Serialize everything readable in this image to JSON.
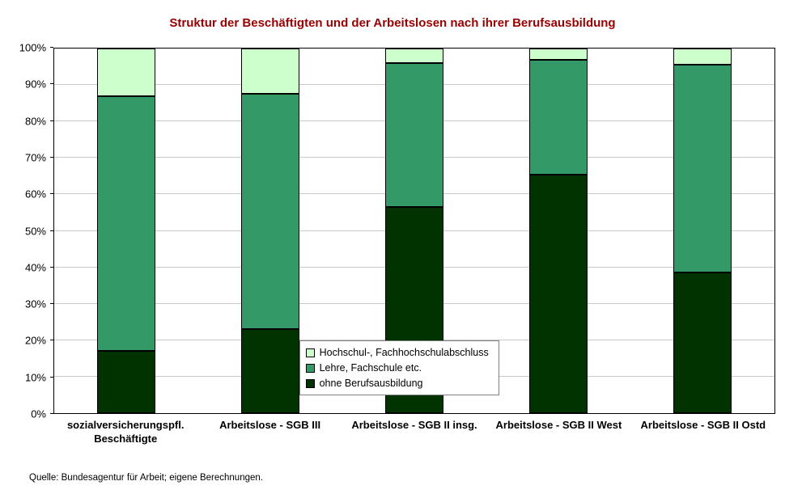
{
  "title": "Struktur der Beschäftigten und der Arbeitslosen nach ihrer Berufsausbildung",
  "source": "Quelle: Bundesagentur für Arbeit; eigene Berechnungen.",
  "colors": {
    "title": "#990000",
    "axis_text": "#000000",
    "plot_border": "#000000",
    "gridline": "#c8c8c8",
    "legend_border": "#808080"
  },
  "chart_data": {
    "type": "bar",
    "stacked": true,
    "percent": true,
    "title": "Struktur der Beschäftigten und der Arbeitslosen nach ihrer Berufsausbildung",
    "categories": [
      "sozialversicherungspfl.\nBeschäftigte",
      "Arbeitslose - SGB III",
      "Arbeitslose - SGB II insg.",
      "Arbeitslose - SGB II West",
      "Arbeitslose - SGB II Ostd"
    ],
    "series": [
      {
        "name": "ohne Berufsausbildung",
        "color": "#003300",
        "values": [
          17,
          23,
          56.5,
          65.5,
          38.5
        ]
      },
      {
        "name": "Lehre, Fachschule etc.",
        "color": "#339966",
        "values": [
          70,
          64.5,
          39.5,
          31.5,
          57
        ]
      },
      {
        "name": "Hochschul-, Fachhochschulabschluss",
        "color": "#CCFFCC",
        "values": [
          13,
          12.5,
          4,
          3,
          4.5
        ]
      }
    ],
    "legend_order": [
      "Hochschul-, Fachhochschulabschluss",
      "Lehre, Fachschule etc.",
      "ohne Berufsausbildung"
    ],
    "ylim": [
      0,
      100
    ],
    "yticks": [
      "0%",
      "10%",
      "20%",
      "30%",
      "40%",
      "50%",
      "60%",
      "70%",
      "80%",
      "90%",
      "100%"
    ],
    "grid": true,
    "legend_position": "lower-center-overlay",
    "xlabel": "",
    "ylabel": ""
  }
}
